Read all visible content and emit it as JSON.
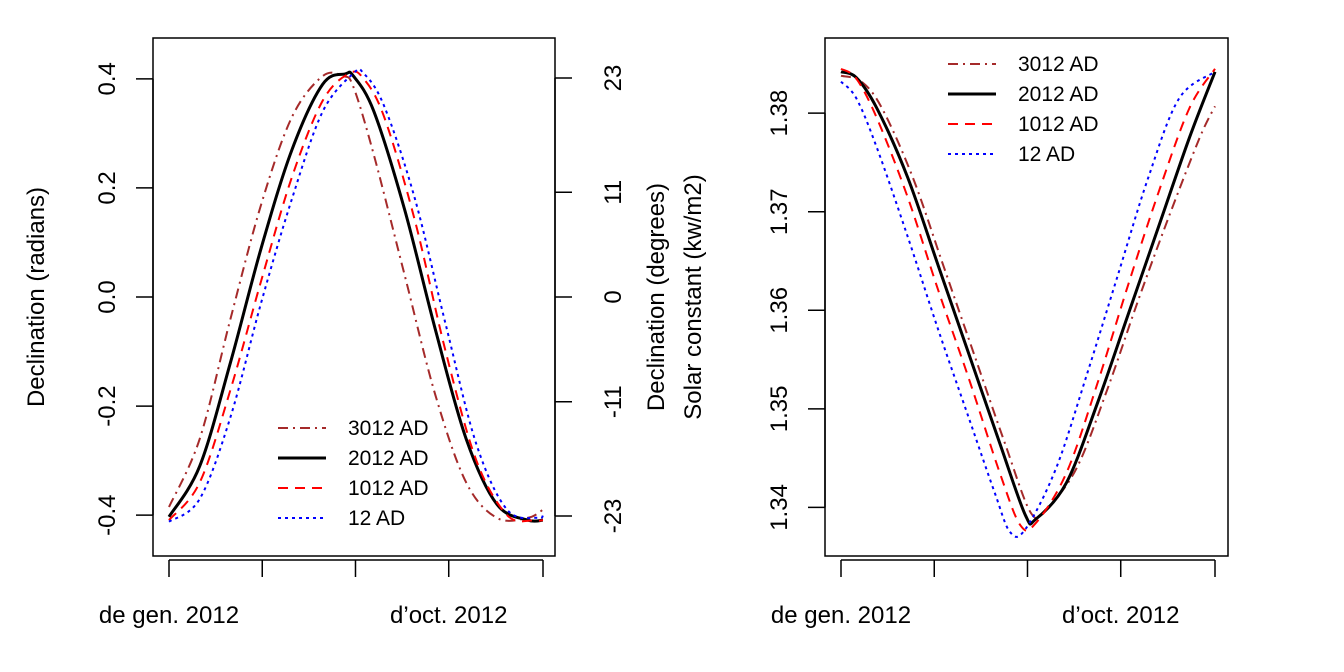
{
  "chart_data": [
    {
      "type": "line",
      "title": "",
      "ylabel": "Declination (radians)",
      "ylabel_right": "Declination (degrees)",
      "xlim": [
        0,
        365
      ],
      "ylim": [
        -0.44,
        0.44
      ],
      "x_ticks": [
        0,
        91,
        182,
        273,
        365
      ],
      "x_tick_labels": [
        {
          "x": 0,
          "label": "de gen. 2012"
        },
        {
          "x": 273,
          "label": "d’oct. 2012"
        }
      ],
      "y_ticks": [
        -0.4,
        -0.2,
        0.0,
        0.2,
        0.4
      ],
      "y_tick_labels": [
        "-0.4",
        "-0.2",
        "0.0",
        "0.2",
        "0.4"
      ],
      "y_right_ticks": [
        -0.4014,
        -0.192,
        0,
        0.192,
        0.4014
      ],
      "y_right_tick_labels": [
        "-23",
        "-11",
        "0",
        "11",
        "23"
      ],
      "legend": {
        "position": "bottom-right"
      },
      "series": [
        {
          "name": "3012 AD",
          "color": "#a52a2a",
          "dash": "dotdash",
          "x": [
            0,
            30,
            60,
            90,
            120,
            150,
            170,
            180,
            200,
            230,
            260,
            290,
            320,
            350,
            365
          ],
          "y": [
            -0.385,
            -0.26,
            -0.04,
            0.17,
            0.33,
            0.405,
            0.405,
            0.385,
            0.26,
            0.04,
            -0.18,
            -0.34,
            -0.405,
            -0.405,
            -0.39
          ]
        },
        {
          "name": "2012 AD",
          "color": "#000000",
          "dash": "solid",
          "x": [
            0,
            30,
            60,
            90,
            120,
            150,
            172,
            180,
            200,
            230,
            260,
            290,
            320,
            350,
            365
          ],
          "y": [
            -0.403,
            -0.31,
            -0.12,
            0.09,
            0.27,
            0.39,
            0.409,
            0.405,
            0.34,
            0.16,
            -0.06,
            -0.26,
            -0.38,
            -0.409,
            -0.409
          ]
        },
        {
          "name": "1012 AD",
          "color": "#ff0000",
          "dash": "dashed",
          "x": [
            0,
            30,
            60,
            90,
            120,
            150,
            176,
            190,
            210,
            240,
            270,
            300,
            330,
            355,
            365
          ],
          "y": [
            -0.409,
            -0.34,
            -0.17,
            0.03,
            0.22,
            0.36,
            0.41,
            0.4,
            0.33,
            0.14,
            -0.1,
            -0.3,
            -0.4,
            -0.41,
            -0.409
          ]
        },
        {
          "name": "12 AD",
          "color": "#0000ff",
          "dash": "dotted",
          "x": [
            0,
            30,
            60,
            90,
            120,
            150,
            180,
            190,
            210,
            240,
            270,
            300,
            330,
            360,
            365
          ],
          "y": [
            -0.412,
            -0.37,
            -0.22,
            -0.01,
            0.18,
            0.34,
            0.41,
            0.41,
            0.35,
            0.18,
            -0.05,
            -0.27,
            -0.39,
            -0.405,
            -0.4
          ]
        }
      ]
    },
    {
      "type": "line",
      "title": "",
      "ylabel": "Solar constant (kw/m2)",
      "xlim": [
        0,
        365
      ],
      "ylim": [
        1.337,
        1.3857
      ],
      "x_ticks": [
        0,
        91,
        182,
        273,
        365
      ],
      "x_tick_labels": [
        {
          "x": 0,
          "label": "de gen. 2012"
        },
        {
          "x": 273,
          "label": "d’oct. 2012"
        }
      ],
      "y_ticks": [
        1.34,
        1.35,
        1.36,
        1.37,
        1.38
      ],
      "y_tick_labels": [
        "1.34",
        "1.35",
        "1.36",
        "1.37",
        "1.38"
      ],
      "legend": {
        "position": "top-right"
      },
      "series": [
        {
          "name": "3012 AD",
          "color": "#a52a2a",
          "dash": "dotdash",
          "x": [
            0,
            20,
            40,
            70,
            100,
            130,
            160,
            185,
            200,
            230,
            260,
            290,
            320,
            350,
            365
          ],
          "y": [
            1.3838,
            1.3832,
            1.3805,
            1.3735,
            1.3645,
            1.3555,
            1.3465,
            1.3395,
            1.3398,
            1.344,
            1.352,
            1.361,
            1.3695,
            1.3775,
            1.3807
          ]
        },
        {
          "name": "2012 AD",
          "color": "#000000",
          "dash": "solid",
          "x": [
            0,
            15,
            35,
            65,
            95,
            125,
            155,
            180,
            190,
            220,
            250,
            280,
            310,
            340,
            365
          ],
          "y": [
            1.3842,
            1.3836,
            1.3805,
            1.3735,
            1.3645,
            1.3555,
            1.3465,
            1.3392,
            1.3388,
            1.3425,
            1.3505,
            1.3595,
            1.3685,
            1.3775,
            1.3842
          ]
        },
        {
          "name": "1012 AD",
          "color": "#ff0000",
          "dash": "dashed",
          "x": [
            0,
            15,
            35,
            65,
            95,
            125,
            155,
            175,
            190,
            220,
            250,
            280,
            310,
            340,
            365
          ],
          "y": [
            1.3845,
            1.3835,
            1.3795,
            1.3715,
            1.362,
            1.353,
            1.3435,
            1.3382,
            1.3384,
            1.3435,
            1.3525,
            1.3625,
            1.372,
            1.3805,
            1.3845
          ]
        },
        {
          "name": "12 AD",
          "color": "#0000ff",
          "dash": "dotted",
          "x": [
            0,
            15,
            35,
            65,
            95,
            125,
            150,
            165,
            180,
            210,
            240,
            270,
            300,
            330,
            365
          ],
          "y": [
            1.3832,
            1.3815,
            1.3765,
            1.3675,
            1.358,
            1.349,
            1.3415,
            1.3375,
            1.3378,
            1.344,
            1.3535,
            1.3635,
            1.3735,
            1.3815,
            1.3842
          ]
        }
      ]
    }
  ]
}
